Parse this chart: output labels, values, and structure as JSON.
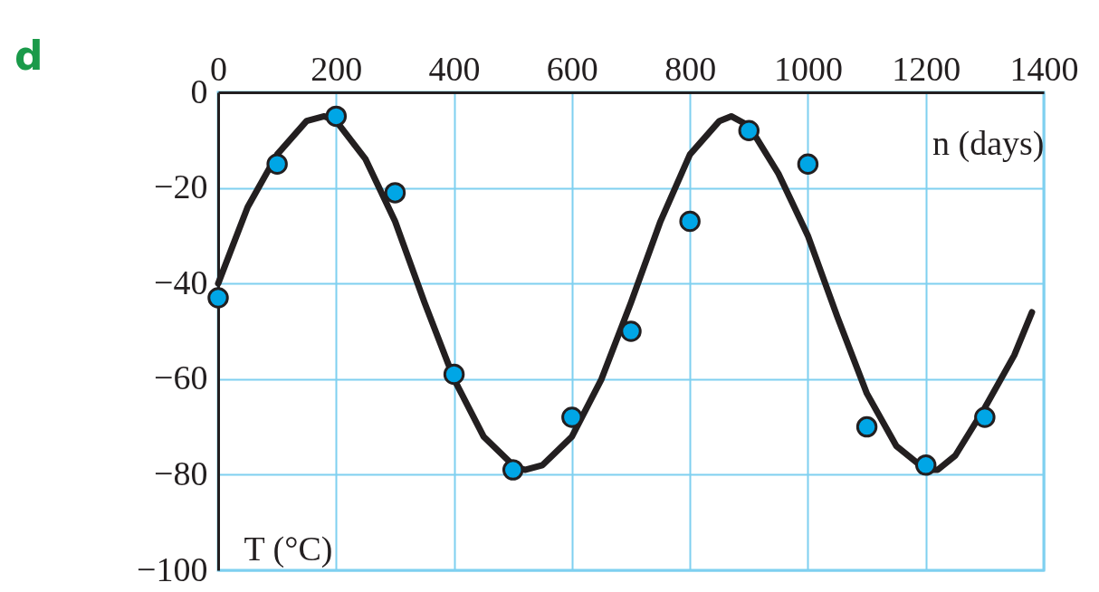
{
  "chart_data": {
    "type": "scatter",
    "title": "d",
    "xlabel": "n (days)",
    "ylabel": "T (°C)",
    "xlim": [
      0,
      1400
    ],
    "xticks": [
      0,
      200,
      400,
      600,
      800,
      1000,
      1200,
      1400
    ],
    "ylim": [
      -100,
      0
    ],
    "yticks": [
      -100,
      -80,
      -60,
      -40,
      -20,
      0
    ],
    "grid": true,
    "series": [
      {
        "type": "line",
        "marker": "none",
        "color": "#231f20",
        "x": [
          0,
          50,
          100,
          150,
          180,
          200,
          250,
          300,
          350,
          400,
          450,
          500,
          520,
          550,
          600,
          650,
          700,
          750,
          800,
          850,
          870,
          900,
          950,
          1000,
          1050,
          1100,
          1150,
          1200,
          1220,
          1250,
          1300,
          1350,
          1380
        ],
        "values": [
          -40,
          -24,
          -13,
          -6,
          -5,
          -6,
          -14,
          -27,
          -44,
          -60,
          -72,
          -78,
          -79,
          -78,
          -72,
          -60,
          -44,
          -27,
          -13,
          -6,
          -5,
          -7,
          -17,
          -30,
          -47,
          -63,
          -74,
          -79,
          -79,
          -76,
          -66,
          -55,
          -46
        ]
      },
      {
        "marker": "circle",
        "color": "#00a6e6",
        "x": [
          0,
          100,
          200,
          300,
          400,
          500,
          600,
          700,
          800,
          900,
          1000,
          1100,
          1200,
          1300
        ],
        "values": [
          -43,
          -15,
          -5,
          -21,
          -59,
          -79,
          -68,
          -50,
          -27,
          -8,
          -15,
          -70,
          -78,
          -68
        ]
      }
    ]
  }
}
